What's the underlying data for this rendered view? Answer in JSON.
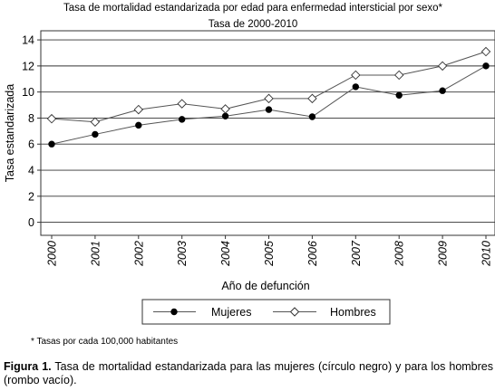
{
  "chart_data": {
    "type": "line",
    "title": "Tasa de mortalidad estandarizada por edad para enfermedad intersticial por sexo*",
    "subtitle": "Tasa de 2000-2010",
    "xlabel": "Año de defunción",
    "ylabel": "Tasa estandarizada",
    "x": [
      "2000",
      "2001",
      "2002",
      "2003",
      "2004",
      "2005",
      "2006",
      "2007",
      "2008",
      "2009",
      "2010"
    ],
    "ylim": [
      -1,
      14.7
    ],
    "yticks": [
      0,
      2,
      4,
      6,
      8,
      10,
      12,
      14
    ],
    "grid": true,
    "legend_position": "bottom",
    "series": [
      {
        "name": "Mujeres",
        "marker": "filled-circle",
        "values": [
          6.0,
          6.75,
          7.45,
          7.9,
          8.15,
          8.65,
          8.1,
          10.4,
          9.75,
          10.1,
          12.0
        ]
      },
      {
        "name": "Hombres",
        "marker": "hollow-diamond",
        "values": [
          7.95,
          7.7,
          8.65,
          9.1,
          8.7,
          9.5,
          9.5,
          11.3,
          11.3,
          12.0,
          13.1
        ]
      }
    ]
  },
  "colors": {
    "line": "#555555",
    "grid": "#333333",
    "marker_fill_mujeres": "#000000",
    "marker_fill_hombres": "#ffffff"
  },
  "footnote": "* Tasas por cada 100,000 habitantes",
  "caption": {
    "label": "Figura 1.",
    "text": " Tasa de mortalidad estandarizada para las mujeres (círculo negro) y para los hombres (rombo vacío)."
  }
}
